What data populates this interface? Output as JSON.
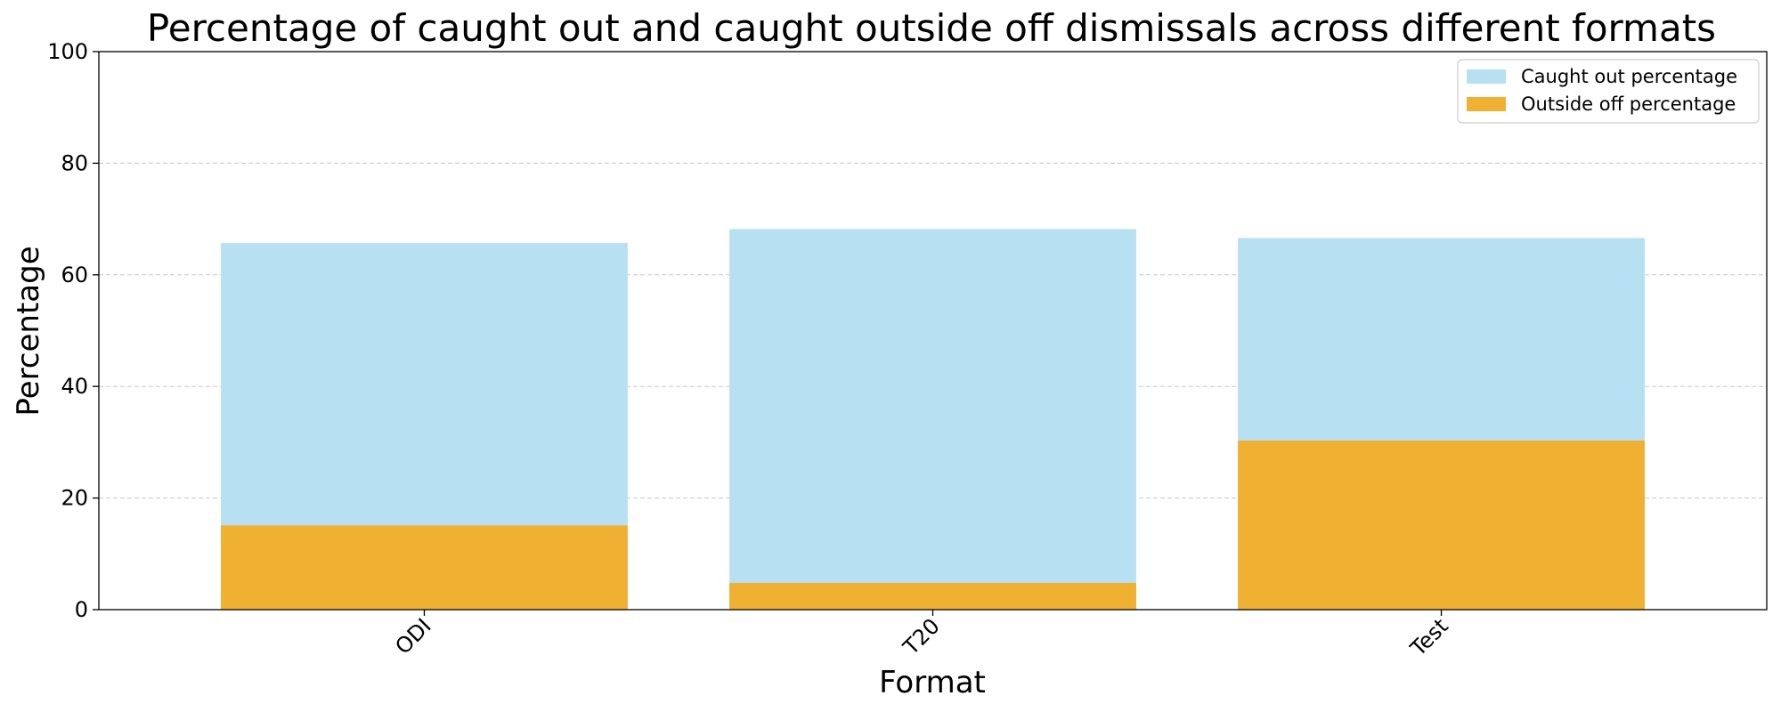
{
  "chart_data": {
    "type": "bar",
    "title": "Percentage of caught out and caught outside off dismissals across different formats",
    "xlabel": "Format",
    "ylabel": "Percentage",
    "categories": [
      "ODI",
      "T20",
      "Test"
    ],
    "series": [
      {
        "name": "Caught out percentage",
        "values": [
          65.7,
          68.2,
          66.6
        ],
        "color": "#b7e0f2"
      },
      {
        "name": "Outside off percentage",
        "values": [
          15.1,
          4.8,
          30.3
        ],
        "color": "#f0b032"
      }
    ],
    "ylim": [
      0,
      100
    ],
    "yticks": [
      0,
      20,
      40,
      60,
      80,
      100
    ],
    "grid": "y-dashed",
    "legend_position": "top-right",
    "x_tick_rotation": 45
  }
}
